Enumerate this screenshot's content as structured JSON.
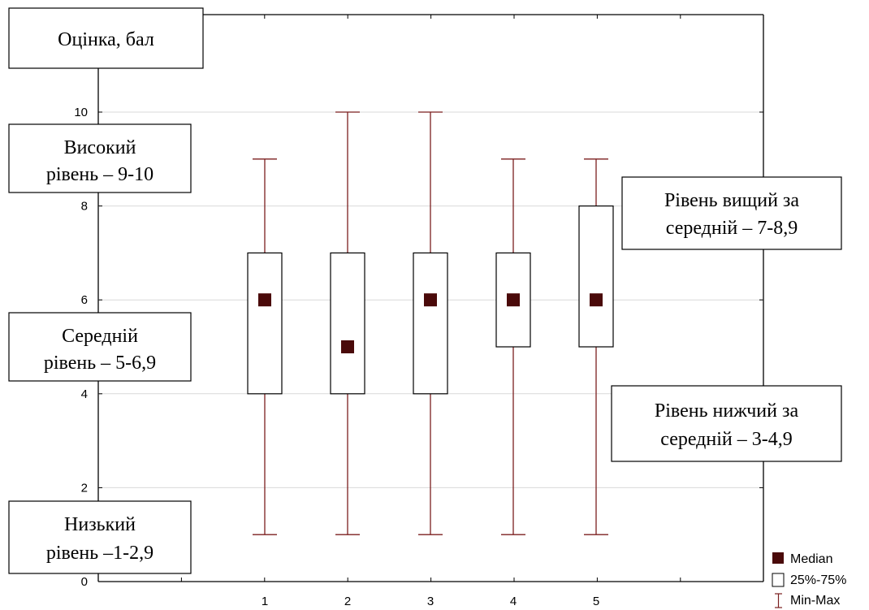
{
  "chart_data": {
    "type": "boxplot",
    "categories": [
      "1",
      "2",
      "3",
      "4",
      "5"
    ],
    "series": [
      {
        "category": "1",
        "min": 1,
        "q1": 4,
        "median": 6,
        "q3": 7,
        "max": 9
      },
      {
        "category": "2",
        "min": 1,
        "q1": 4,
        "median": 5,
        "q3": 7,
        "max": 10
      },
      {
        "category": "3",
        "min": 1,
        "q1": 4,
        "median": 6,
        "q3": 7,
        "max": 10
      },
      {
        "category": "4",
        "min": 1,
        "q1": 5,
        "median": 6,
        "q3": 7,
        "max": 9
      },
      {
        "category": "5",
        "min": 1,
        "q1": 5,
        "median": 6,
        "q3": 8,
        "max": 9
      }
    ],
    "y_ticks": [
      "0",
      "2",
      "4",
      "6",
      "8",
      "10"
    ],
    "ylim": [
      0,
      10.15
    ],
    "grid": "horizontal",
    "ylabel": "Оцінка, бал",
    "annotations": {
      "high_l1": "Високий",
      "high_l2": "рівень – 9-10",
      "above_l1": "Рівень вищий за",
      "above_l2": "середній – 7-8,9",
      "mid_l1": "Середній",
      "mid_l2": "рівень – 5-6,9",
      "below_l1": "Рівень нижчий за",
      "below_l2": "середній – 3-4,9",
      "low_l1": "Низький",
      "low_l2": "рівень –1-2,9"
    },
    "legend": {
      "placement": "bottom-right",
      "median": "Median",
      "box": "25%-75%",
      "whisker": "Min-Max"
    },
    "colors": {
      "whisker": "#7b1f1f",
      "median": "#4a0a0a",
      "grid": "#d9d9d9"
    }
  }
}
